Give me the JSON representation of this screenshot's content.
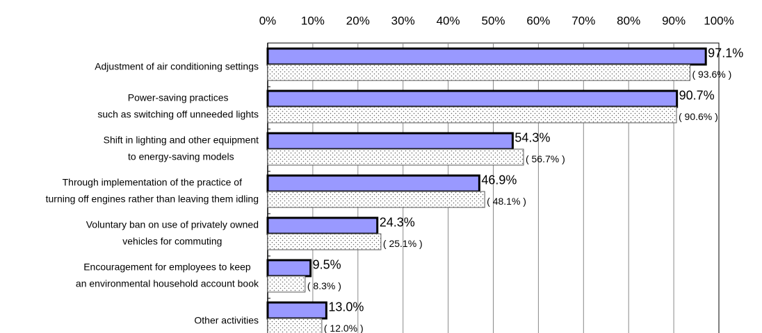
{
  "chart_data": {
    "type": "bar",
    "orientation": "horizontal",
    "categories": [
      [
        "Adjustment of air conditioning settings"
      ],
      [
        "Power-saving practices",
        "such as switching off unneeded lights"
      ],
      [
        "Shift in lighting and other equipment",
        "to energy-saving models"
      ],
      [
        "Through implementation of the practice of",
        "turning off engines rather than leaving them idling"
      ],
      [
        "Voluntary ban on use of privately owned",
        "vehicles for commuting"
      ],
      [
        "Encouragement for employees to keep",
        "an environmental household account book"
      ],
      [
        "Other activities"
      ]
    ],
    "series": [
      {
        "color": "#9999ff",
        "values": [
          97.1,
          90.7,
          54.3,
          46.9,
          24.3,
          9.5,
          13.0
        ],
        "value_labels": [
          "97.1%",
          "90.7%",
          "54.3%",
          "46.9%",
          "24.3%",
          "9.5%",
          "13.0%"
        ]
      },
      {
        "color": "#ffffff",
        "values": [
          93.6,
          90.6,
          56.7,
          48.1,
          25.1,
          8.3,
          12.0
        ],
        "value_labels": [
          "( 93.6% )",
          "( 90.6% )",
          "( 56.7% )",
          "( 48.1% )",
          "( 25.1% )",
          "( 8.3% )",
          "( 12.0% )"
        ]
      }
    ],
    "xlim": [
      0,
      100
    ],
    "xticks": [
      {
        "value": 0,
        "label": "0%"
      },
      {
        "value": 10,
        "label": "10%"
      },
      {
        "value": 20,
        "label": "20%"
      },
      {
        "value": 30,
        "label": "30%"
      },
      {
        "value": 40,
        "label": "40%"
      },
      {
        "value": 50,
        "label": "50%"
      },
      {
        "value": 60,
        "label": "60%"
      },
      {
        "value": 70,
        "label": "70%"
      },
      {
        "value": 80,
        "label": "80%"
      },
      {
        "value": 90,
        "label": "90%"
      },
      {
        "value": 100,
        "label": "100%"
      }
    ],
    "grid": true
  }
}
